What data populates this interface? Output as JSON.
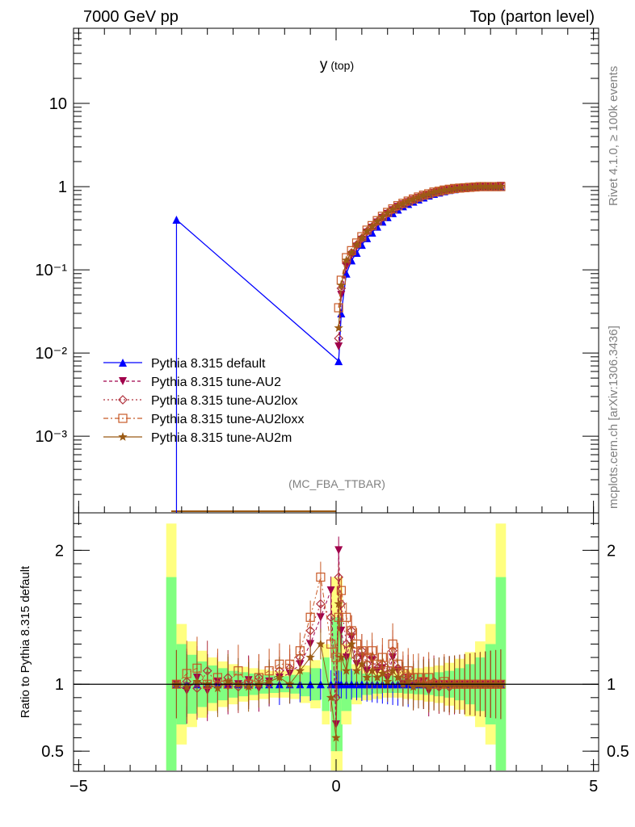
{
  "header": {
    "left": "7000 GeV pp",
    "right": "Top (parton level)"
  },
  "side_labels": {
    "rivet": "Rivet 4.1.0, ≥ 100k events",
    "mcplots": "mcplots.cern.ch [arXiv:1306.3436]"
  },
  "chart_data": {
    "type": "line",
    "title": "y",
    "title_sub": "(top)",
    "watermark": "(MC_FBA_TTBAR)",
    "xlim": [
      -5.1,
      5.1
    ],
    "main": {
      "yscale": "log",
      "ylim": [
        0.00012,
        80
      ],
      "ytick_labels": [
        "10",
        "1",
        "10⁻¹",
        "10⁻²",
        "10⁻³"
      ],
      "ytick_values": [
        10,
        1,
        0.1,
        0.01,
        0.001
      ]
    },
    "ratio": {
      "ylabel": "Ratio to Pythia 8.315 default",
      "ylim": [
        0.35,
        2.28
      ],
      "ytick_labels": [
        "2",
        "1",
        "0.5"
      ],
      "ytick_values": [
        2,
        1,
        0.5
      ]
    },
    "xtick_labels": [
      "−5",
      "0",
      "5"
    ],
    "xtick_values": [
      -5,
      0,
      5
    ],
    "x": [
      -3.1,
      -2.9,
      -2.7,
      -2.5,
      -2.3,
      -2.1,
      -1.9,
      -1.7,
      -1.5,
      -1.3,
      -1.1,
      -0.9,
      -0.7,
      -0.5,
      -0.3,
      -0.1,
      0.0,
      0.05,
      0.1,
      0.2,
      0.3,
      0.4,
      0.5,
      0.6,
      0.7,
      0.8,
      0.9,
      1.0,
      1.1,
      1.2,
      1.3,
      1.4,
      1.5,
      1.6,
      1.7,
      1.8,
      1.9,
      2.0,
      2.1,
      2.2,
      2.3,
      2.4,
      2.5,
      2.6,
      2.7,
      2.8,
      2.9,
      3.0,
      3.1,
      3.2
    ],
    "series": [
      {
        "name": "Pythia 8.315 default",
        "color": "#0000ff",
        "marker": "triangle-up",
        "values": [
          0.4,
          null,
          null,
          null,
          null,
          null,
          null,
          null,
          null,
          null,
          null,
          null,
          null,
          null,
          null,
          null,
          null,
          0.008,
          0.03,
          0.09,
          0.13,
          0.16,
          0.2,
          0.24,
          0.28,
          0.33,
          0.38,
          0.43,
          0.48,
          0.53,
          0.58,
          0.62,
          0.66,
          0.7,
          0.74,
          0.78,
          0.82,
          0.85,
          0.88,
          0.91,
          0.93,
          0.95,
          0.96,
          0.97,
          0.98,
          0.99,
          1.0,
          1.0,
          1.0,
          1.0
        ],
        "ratio": [
          1,
          1,
          1,
          1,
          1,
          1,
          1,
          1,
          1,
          1,
          1,
          1,
          1,
          1,
          1,
          1,
          1,
          1,
          1,
          1,
          1,
          1,
          1,
          1,
          1,
          1,
          1,
          1,
          1,
          1,
          1,
          1,
          1,
          1,
          1,
          1,
          1,
          1,
          1,
          1,
          1,
          1,
          1,
          1,
          1,
          1,
          1,
          1,
          1,
          1
        ]
      },
      {
        "name": "Pythia 8.315 tune-AU2",
        "color": "#a0004b",
        "marker": "triangle-down",
        "values": [
          null,
          null,
          null,
          null,
          null,
          null,
          null,
          null,
          null,
          null,
          null,
          null,
          null,
          null,
          null,
          null,
          null,
          0.012,
          0.05,
          0.11,
          0.15,
          0.19,
          0.23,
          0.28,
          0.32,
          0.37,
          0.42,
          0.47,
          0.52,
          0.57,
          0.61,
          0.65,
          0.69,
          0.73,
          0.77,
          0.8,
          0.84,
          0.87,
          0.9,
          0.92,
          0.94,
          0.95,
          0.97,
          0.98,
          0.99,
          1.0,
          1.0,
          1.0,
          1.0,
          1.02
        ],
        "ratio": [
          1.0,
          0.95,
          1.05,
          0.95,
          1.02,
          0.98,
          1.0,
          1.03,
          0.97,
          1.02,
          1.05,
          1.08,
          1.15,
          1.3,
          1.5,
          1.7,
          0.7,
          2.0,
          1.4,
          1.2,
          1.35,
          1.15,
          1.2,
          1.1,
          1.18,
          1.1,
          1.12,
          1.05,
          1.2,
          1.1,
          1.0,
          1.05,
          0.98,
          1.0,
          1.02,
          0.95,
          1.0,
          0.98,
          1.0,
          1.0,
          0.99,
          1.0,
          1.0,
          1.0,
          1.0,
          1.0,
          1.0,
          1.0,
          1.0,
          1.0
        ]
      },
      {
        "name": "Pythia 8.315 tune-AU2lox",
        "color": "#b0303c",
        "marker": "diamond-open",
        "values": [
          null,
          null,
          null,
          null,
          null,
          null,
          null,
          null,
          null,
          null,
          null,
          null,
          null,
          null,
          null,
          null,
          null,
          0.015,
          0.06,
          0.12,
          0.16,
          0.2,
          0.24,
          0.29,
          0.33,
          0.38,
          0.43,
          0.48,
          0.53,
          0.58,
          0.62,
          0.66,
          0.7,
          0.74,
          0.78,
          0.81,
          0.85,
          0.88,
          0.9,
          0.92,
          0.94,
          0.96,
          0.97,
          0.98,
          0.99,
          1.0,
          1.0,
          1.0,
          1.0,
          1.0
        ],
        "ratio": [
          1.0,
          1.02,
          0.97,
          1.1,
          1.0,
          1.05,
          0.98,
          1.02,
          1.05,
          1.0,
          1.1,
          1.12,
          1.2,
          1.4,
          1.6,
          1.5,
          0.9,
          1.8,
          1.6,
          1.3,
          1.4,
          1.2,
          1.25,
          1.15,
          1.2,
          1.12,
          1.15,
          1.08,
          1.25,
          1.12,
          1.05,
          1.05,
          1.0,
          1.02,
          1.0,
          1.0,
          1.02,
          0.98,
          1.0,
          0.98,
          1.0,
          1.0,
          1.0,
          1.0,
          1.0,
          1.0,
          1.0,
          1.0,
          1.0,
          1.0
        ]
      },
      {
        "name": "Pythia 8.315 tune-AU2loxx",
        "color": "#c85a28",
        "marker": "square-open",
        "values": [
          null,
          null,
          null,
          null,
          null,
          null,
          null,
          null,
          null,
          null,
          null,
          null,
          null,
          null,
          null,
          null,
          null,
          0.035,
          0.075,
          0.14,
          0.17,
          0.21,
          0.25,
          0.3,
          0.34,
          0.39,
          0.44,
          0.49,
          0.54,
          0.59,
          0.63,
          0.67,
          0.71,
          0.75,
          0.79,
          0.82,
          0.86,
          0.88,
          0.91,
          0.93,
          0.95,
          0.96,
          0.97,
          0.98,
          0.99,
          1.0,
          1.0,
          1.0,
          1.0,
          1.0
        ],
        "ratio": [
          1.0,
          1.08,
          1.12,
          1.0,
          1.05,
          1.0,
          1.1,
          1.0,
          1.05,
          1.1,
          1.15,
          1.15,
          1.25,
          1.5,
          1.8,
          1.3,
          1.2,
          1.5,
          1.7,
          1.5,
          1.4,
          1.3,
          1.25,
          1.2,
          1.25,
          1.15,
          1.2,
          1.1,
          1.3,
          1.15,
          1.08,
          1.1,
          1.05,
          1.05,
          1.02,
          1.05,
          1.0,
          1.0,
          1.02,
          1.0,
          1.0,
          1.0,
          1.0,
          1.0,
          1.0,
          1.0,
          1.0,
          1.0,
          1.0,
          1.0
        ]
      },
      {
        "name": "Pythia 8.315 tune-AU2m",
        "color": "#9b5a14",
        "marker": "star",
        "values": [
          null,
          null,
          null,
          null,
          null,
          null,
          null,
          null,
          null,
          null,
          null,
          null,
          null,
          null,
          null,
          null,
          null,
          0.02,
          0.065,
          0.13,
          0.16,
          0.2,
          0.24,
          0.29,
          0.33,
          0.38,
          0.43,
          0.48,
          0.53,
          0.58,
          0.62,
          0.66,
          0.7,
          0.74,
          0.78,
          0.81,
          0.85,
          0.88,
          0.9,
          0.92,
          0.94,
          0.96,
          0.97,
          0.98,
          0.99,
          1.0,
          1.0,
          1.0,
          1.0,
          1.0
        ],
        "ratio": [
          1.0,
          0.98,
          1.02,
          1.0,
          0.97,
          1.02,
          1.0,
          0.98,
          1.0,
          1.02,
          1.05,
          1.0,
          1.1,
          1.2,
          1.3,
          0.9,
          0.6,
          1.6,
          1.2,
          1.1,
          1.3,
          1.1,
          1.15,
          1.05,
          1.1,
          1.05,
          1.08,
          1.02,
          1.1,
          1.05,
          1.0,
          1.02,
          0.98,
          1.0,
          1.0,
          0.98,
          1.0,
          1.0,
          1.0,
          1.0,
          1.0,
          1.0,
          1.0,
          1.0,
          1.0,
          1.0,
          1.0,
          1.0,
          1.0,
          1.0
        ]
      }
    ],
    "uncertainty_band": {
      "x": [
        -3.2,
        -3.0,
        -2.8,
        -2.6,
        -2.4,
        -2.2,
        -2.0,
        -1.8,
        -1.6,
        -1.4,
        -1.2,
        -1.0,
        -0.8,
        -0.6,
        -0.4,
        -0.2,
        -0.05,
        0.05,
        0.2,
        0.4,
        0.6,
        0.8,
        1.0,
        1.2,
        1.4,
        1.6,
        1.8,
        2.0,
        2.2,
        2.4,
        2.6,
        2.8,
        3.0,
        3.2
      ],
      "inner_half": [
        0.8,
        0.3,
        0.22,
        0.17,
        0.14,
        0.12,
        0.1,
        0.09,
        0.08,
        0.07,
        0.065,
        0.06,
        0.07,
        0.09,
        0.12,
        0.2,
        0.5,
        0.5,
        0.2,
        0.1,
        0.08,
        0.07,
        0.065,
        0.065,
        0.07,
        0.075,
        0.08,
        0.09,
        0.1,
        0.12,
        0.15,
        0.2,
        0.3,
        0.8
      ],
      "outer_half": [
        1.2,
        0.45,
        0.32,
        0.25,
        0.2,
        0.17,
        0.15,
        0.13,
        0.12,
        0.11,
        0.1,
        0.1,
        0.11,
        0.14,
        0.18,
        0.3,
        0.8,
        0.8,
        0.3,
        0.15,
        0.12,
        0.11,
        0.1,
        0.1,
        0.11,
        0.12,
        0.13,
        0.14,
        0.16,
        0.19,
        0.24,
        0.32,
        0.45,
        1.2
      ]
    }
  }
}
